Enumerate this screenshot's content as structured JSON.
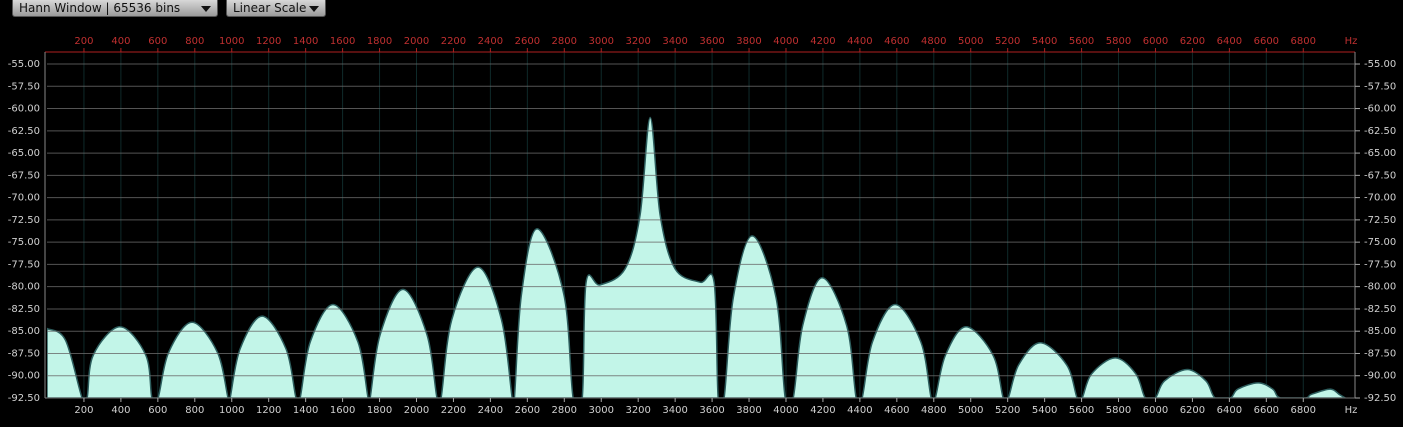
{
  "controls": {
    "window": "Hann Window | 65536 bins",
    "scale": "Linear Scale"
  },
  "chart_data": {
    "type": "area",
    "x_label": "Hz",
    "color": "#c2f5e8",
    "x": [
      0,
      100,
      190,
      217,
      250,
      395,
      535,
      568,
      601,
      658,
      785,
      923,
      980,
      991,
      1045,
      1164,
      1294,
      1348,
      1370,
      1425,
      1548,
      1683,
      1738,
      1749,
      1803,
      1927,
      2057,
      2111,
      2133,
      2191,
      2333,
      2460,
      2518,
      2530,
      2568,
      2653,
      2798,
      2848,
      2897,
      2918,
      2994,
      3129,
      3210,
      3265,
      3319,
      3400,
      3535,
      3611,
      3633,
      3665,
      3715,
      3817,
      3946,
      3996,
      4039,
      4090,
      4196,
      4329,
      4380,
      4412,
      4468,
      4591,
      4730,
      4786,
      4808,
      4863,
      4975,
      5121,
      5176,
      5203,
      5259,
      5376,
      5520,
      5576,
      5603,
      5654,
      5782,
      5894,
      5945,
      5999,
      6048,
      6172,
      6274,
      6323,
      6405,
      6446,
      6556,
      6635,
      6676,
      6811,
      6843,
      6946,
      6995,
      7027
    ],
    "values": [
      -84.7,
      -86,
      -92.5,
      -92.5,
      -87.7,
      -84.5,
      -87.7,
      -92.5,
      -92.5,
      -87.4,
      -84,
      -87.4,
      -92.5,
      -92.5,
      -87,
      -83.3,
      -87,
      -92.5,
      -92.5,
      -86.2,
      -82,
      -86.2,
      -92.5,
      -92.5,
      -85.4,
      -80.3,
      -85.4,
      -92.5,
      -92.5,
      -83.7,
      -77.8,
      -83.7,
      -92.5,
      -92.5,
      -80.9,
      -73.5,
      -80.9,
      -92.5,
      -92.5,
      -79.5,
      -79.8,
      -78,
      -72,
      -61,
      -72,
      -78,
      -79.5,
      -79.5,
      -92.5,
      -92.5,
      -81.2,
      -74.3,
      -81.2,
      -92.5,
      -92.5,
      -84.4,
      -79,
      -84.4,
      -92.5,
      -92.5,
      -86.2,
      -82,
      -86.2,
      -92.5,
      -92.5,
      -87.7,
      -84.5,
      -87.7,
      -92.5,
      -92.5,
      -88.8,
      -86.3,
      -88.8,
      -92.5,
      -92.5,
      -89.8,
      -88,
      -89.8,
      -92.5,
      -92.5,
      -90.6,
      -89.3,
      -90.6,
      -92.5,
      -92.5,
      -91.5,
      -90.8,
      -91.5,
      -92.5,
      -92.5,
      -92.1,
      -91.5,
      -92.1,
      -92.5
    ],
    "xlim": [
      0,
      7080
    ],
    "xticks": [
      200,
      400,
      600,
      800,
      1000,
      1200,
      1400,
      1600,
      1800,
      2000,
      2200,
      2400,
      2600,
      2800,
      3000,
      3200,
      3400,
      3600,
      3800,
      4000,
      4200,
      4400,
      4600,
      4800,
      5000,
      5200,
      5400,
      5600,
      5800,
      6000,
      6200,
      6400,
      6600,
      6800
    ],
    "ylim": [
      -92.5,
      -53.65
    ],
    "yticks": [
      {
        "value": -55,
        "label": "-55.00"
      },
      {
        "value": -57.5,
        "label": "-57.50"
      },
      {
        "value": -60,
        "label": "-60.00"
      },
      {
        "value": -62.5,
        "label": "-62.50"
      },
      {
        "value": -65,
        "label": "-65.00"
      },
      {
        "value": -67.5,
        "label": "-67.50"
      },
      {
        "value": -70,
        "label": "-70.00"
      },
      {
        "value": -72.5,
        "label": "-72.50"
      },
      {
        "value": -75,
        "label": "-75.00"
      },
      {
        "value": -77.5,
        "label": "-77.50"
      },
      {
        "value": -80,
        "label": "-80.00"
      },
      {
        "value": -82.5,
        "label": "-82.50"
      },
      {
        "value": -85,
        "label": "-85.00"
      },
      {
        "value": -87.5,
        "label": "-87.50"
      },
      {
        "value": -90,
        "label": "-90.00"
      },
      {
        "value": -92.5,
        "label": "-92.50"
      }
    ],
    "grid": true
  }
}
